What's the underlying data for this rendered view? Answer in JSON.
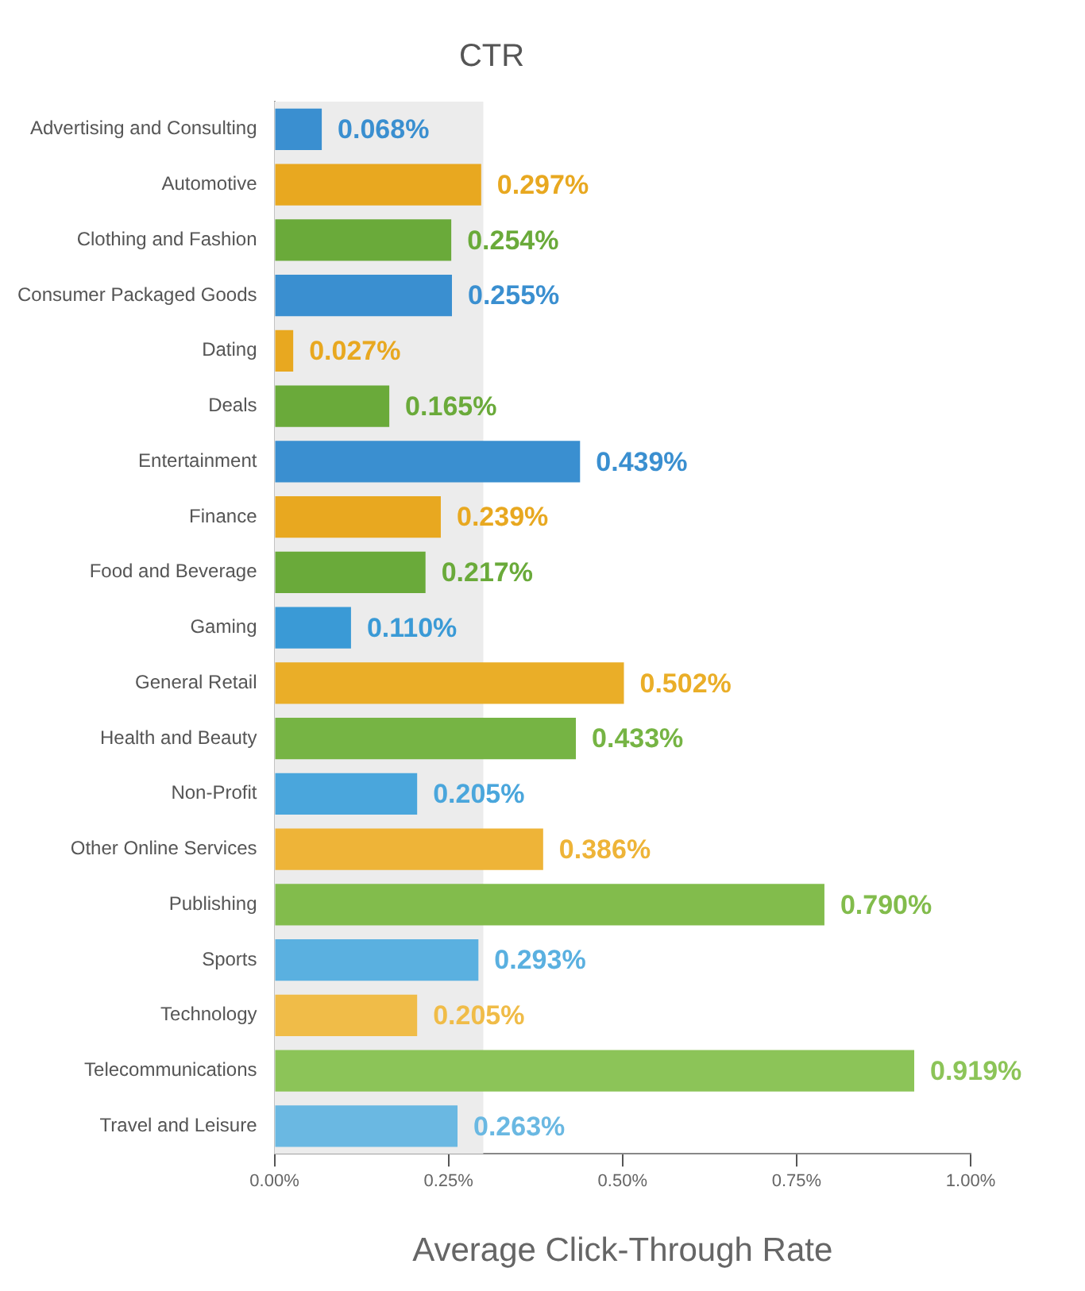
{
  "chart_data": {
    "type": "bar",
    "orientation": "horizontal",
    "title": "CTR",
    "xlabel": "Average Click-Through Rate",
    "categories": [
      "Advertising and Consulting",
      "Automotive",
      "Clothing and Fashion",
      "Consumer Packaged Goods",
      "Dating",
      "Deals",
      "Entertainment",
      "Finance",
      "Food and Beverage",
      "Gaming",
      "General Retail",
      "Health and Beauty",
      "Non-Profit",
      "Other Online Services",
      "Publishing",
      "Sports",
      "Technology",
      "Telecommunications",
      "Travel and Leisure"
    ],
    "values": [
      0.068,
      0.297,
      0.254,
      0.255,
      0.027,
      0.165,
      0.439,
      0.239,
      0.217,
      0.11,
      0.502,
      0.433,
      0.205,
      0.386,
      0.79,
      0.293,
      0.205,
      0.919,
      0.263
    ],
    "value_labels": [
      "0.068%",
      "0.297%",
      "0.254%",
      "0.255%",
      "0.027%",
      "0.165%",
      "0.439%",
      "0.239%",
      "0.217%",
      "0.110%",
      "0.502%",
      "0.433%",
      "0.205%",
      "0.386%",
      "0.790%",
      "0.293%",
      "0.205%",
      "0.919%",
      "0.263%"
    ],
    "colors": [
      "#3a8fd0",
      "#e8a820",
      "#6aaa3a",
      "#3a8fd0",
      "#e8a820",
      "#6aaa3a",
      "#3a8fd0",
      "#e8a820",
      "#6aaa3a",
      "#3a9ad6",
      "#eaae28",
      "#76b444",
      "#4aa6dc",
      "#eeb438",
      "#82bc4c",
      "#5ab0e0",
      "#f0bc48",
      "#8cc458",
      "#6ab8e2"
    ],
    "xlim": [
      0,
      1
    ],
    "xticks": [
      {
        "value": 0,
        "label": "0.00%"
      },
      {
        "value": 0.25,
        "label": "0.25%"
      },
      {
        "value": 0.5,
        "label": "0.50%"
      },
      {
        "value": 0.75,
        "label": "0.75%"
      },
      {
        "value": 1,
        "label": "1.00%"
      }
    ],
    "bands": [
      {
        "axis": "x",
        "from": 0,
        "to": 0.3,
        "color": "#ececec"
      }
    ],
    "grid": false,
    "legend": false
  }
}
